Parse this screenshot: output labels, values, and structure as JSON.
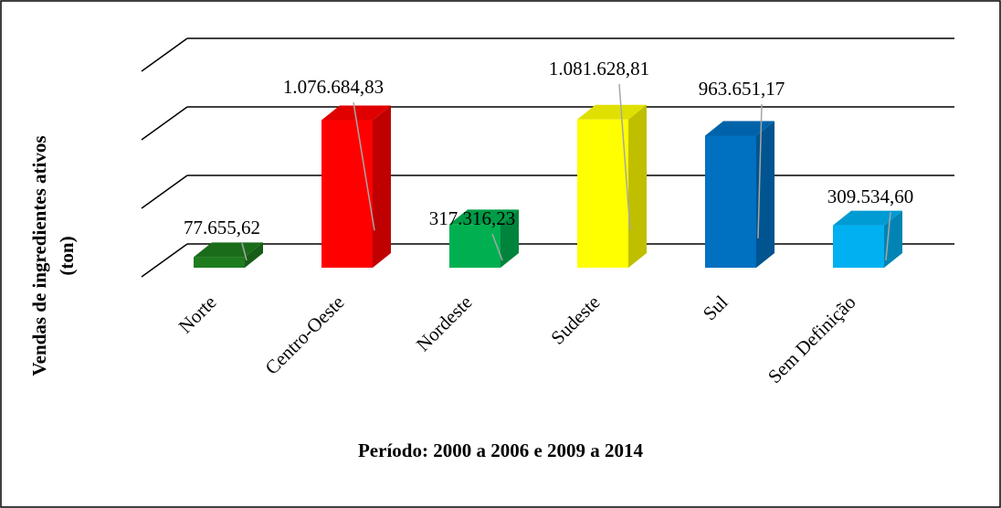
{
  "chart_data": {
    "type": "bar3d",
    "y_label": [
      "Vendas de ingredientes ativos",
      "(ton)"
    ],
    "x_label": "Período: 2000 a 2006 e 2009 a 2014",
    "categories": [
      "Norte",
      "Centro-Oeste",
      "Nordeste",
      "Sudeste",
      "Sul",
      "Sem Definição"
    ],
    "values": [
      77655.62,
      1076684.83,
      317316.23,
      1081628.81,
      963651.17,
      309534.6
    ],
    "value_labels": [
      "77.655,62",
      "1.076.684,83",
      "317.316,23",
      "1.081.628,81",
      "963.651,17",
      "309.534,60"
    ],
    "colors": [
      "#1e7b1e",
      "#ff0000",
      "#00b050",
      "#ffff00",
      "#0070c0",
      "#00b0f0"
    ],
    "ylim": [
      0,
      1500000
    ],
    "yticks": [
      0,
      500000,
      1000000,
      1500000
    ],
    "grid": true
  }
}
